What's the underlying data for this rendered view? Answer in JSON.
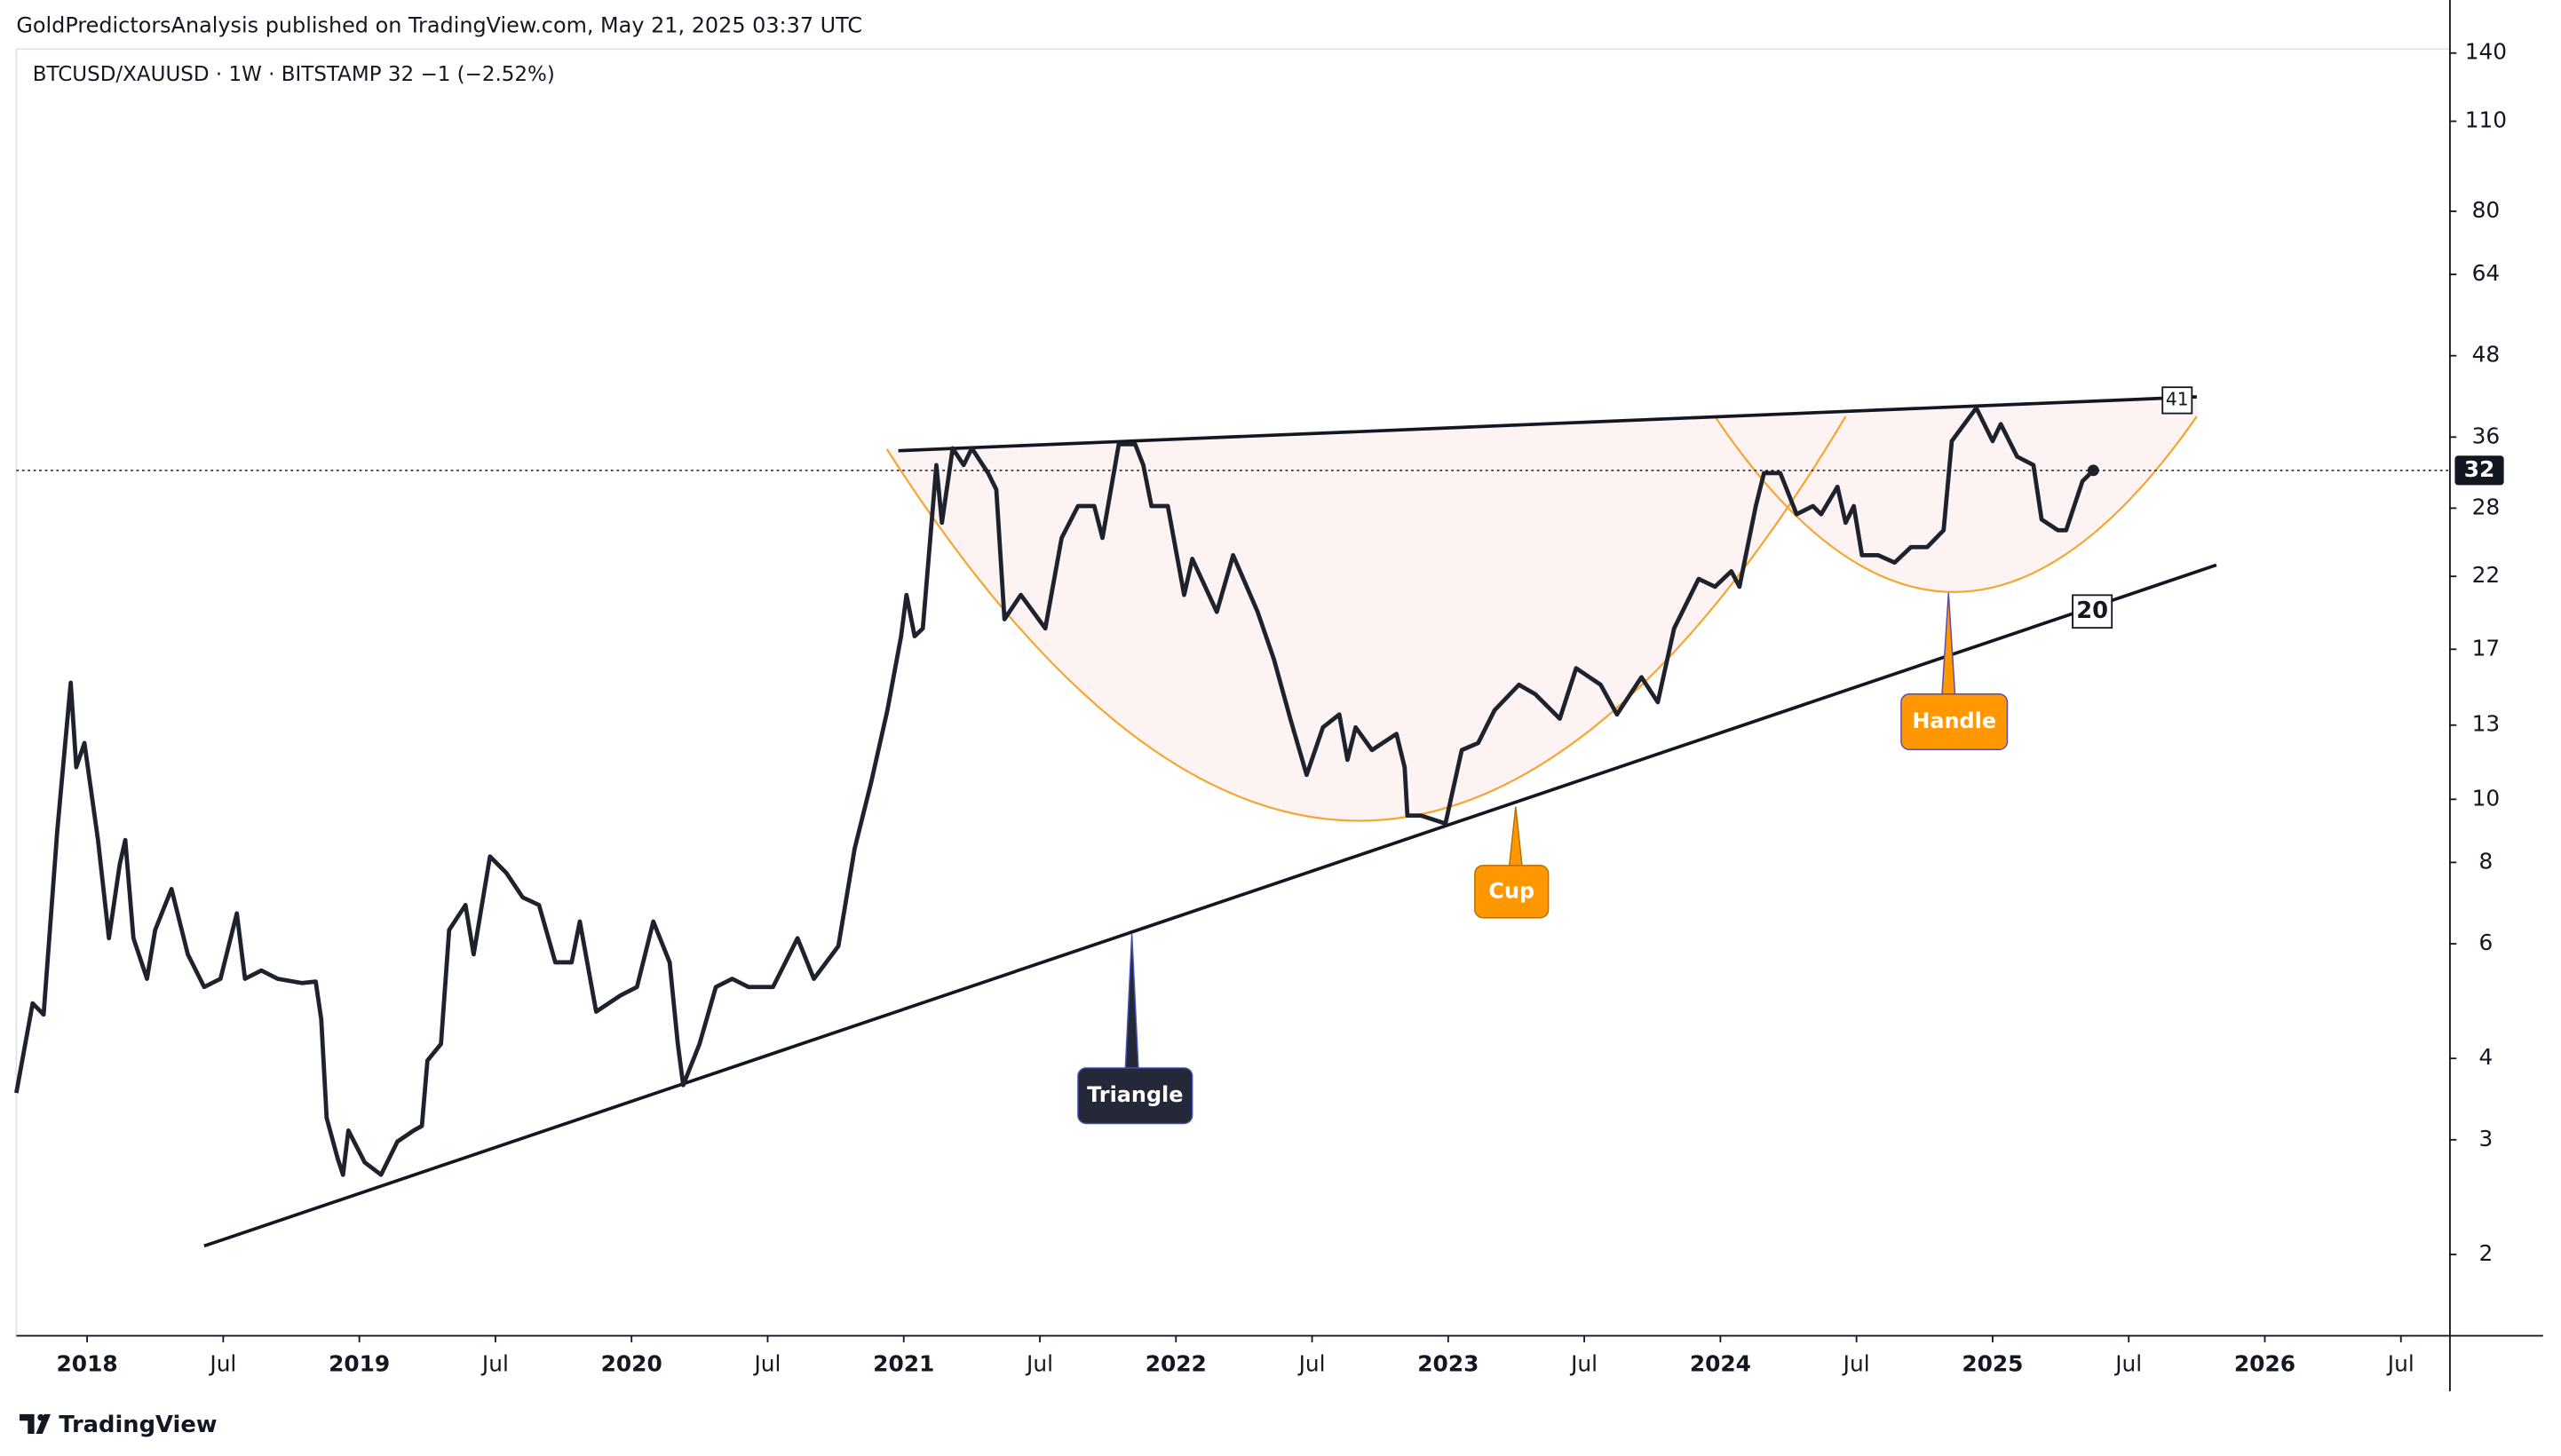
{
  "header": "GoldPredictorsAnalysis published on TradingView.com, May 21, 2025 03:37 UTC",
  "symbol_info": "BTCUSD/XAUUSD · 1W · BITSTAMP  32  −1 (−2.52%)",
  "brand": "TradingView",
  "chart_data": {
    "type": "line",
    "log_scale": true,
    "color": "#1e222d",
    "x": [
      2017.74,
      2017.8,
      2017.84,
      2017.89,
      2017.94,
      2017.96,
      2017.99,
      2018.04,
      2018.08,
      2018.12,
      2018.14,
      2018.17,
      2018.22,
      2018.25,
      2018.31,
      2018.37,
      2018.43,
      2018.49,
      2018.55,
      2018.58,
      2018.64,
      2018.7,
      2018.79,
      2018.84,
      2018.86,
      2018.88,
      2018.92,
      2018.94,
      2018.96,
      2019.02,
      2019.08,
      2019.14,
      2019.2,
      2019.23,
      2019.25,
      2019.3,
      2019.33,
      2019.39,
      2019.42,
      2019.48,
      2019.54,
      2019.6,
      2019.66,
      2019.72,
      2019.78,
      2019.81,
      2019.87,
      2019.96,
      2020.02,
      2020.08,
      2020.14,
      2020.17,
      2020.19,
      2020.25,
      2020.31,
      2020.37,
      2020.43,
      2020.52,
      2020.61,
      2020.67,
      2020.76,
      2020.82,
      2020.88,
      2020.94,
      2020.99,
      2021.01,
      2021.04,
      2021.07,
      2021.12,
      2021.14,
      2021.18,
      2021.22,
      2021.25,
      2021.31,
      2021.34,
      2021.37,
      2021.43,
      2021.52,
      2021.58,
      2021.64,
      2021.7,
      2021.73,
      2021.79,
      2021.85,
      2021.88,
      2021.91,
      2021.97,
      2022.03,
      2022.06,
      2022.15,
      2022.21,
      2022.3,
      2022.36,
      2022.42,
      2022.48,
      2022.54,
      2022.6,
      2022.63,
      2022.66,
      2022.72,
      2022.81,
      2022.84,
      2022.85,
      2022.9,
      2022.99,
      2023.05,
      2023.11,
      2023.17,
      2023.26,
      2023.32,
      2023.41,
      2023.47,
      2023.56,
      2023.62,
      2023.71,
      2023.77,
      2023.83,
      2023.92,
      2023.98,
      2024.04,
      2024.07,
      2024.13,
      2024.16,
      2024.22,
      2024.28,
      2024.34,
      2024.37,
      2024.43,
      2024.46,
      2024.49,
      2024.52,
      2024.58,
      2024.64,
      2024.7,
      2024.76,
      2024.82,
      2024.85,
      2024.94,
      2025.0,
      2025.03,
      2025.09,
      2025.15,
      2025.18,
      2025.24,
      2025.27,
      2025.33,
      2025.37
    ],
    "values": [
      3.54,
      4.86,
      4.67,
      8.91,
      15.1,
      11.2,
      12.2,
      8.66,
      6.12,
      7.94,
      8.66,
      6.12,
      5.3,
      6.3,
      7.28,
      5.78,
      5.15,
      5.3,
      6.68,
      5.3,
      5.46,
      5.3,
      5.22,
      5.25,
      4.59,
      3.24,
      2.81,
      2.65,
      3.1,
      2.77,
      2.65,
      2.98,
      3.1,
      3.15,
      3.97,
      4.21,
      6.3,
      6.88,
      5.78,
      8.17,
      7.71,
      7.07,
      6.88,
      5.62,
      5.62,
      6.49,
      4.72,
      5.0,
      5.15,
      6.49,
      5.62,
      4.21,
      3.64,
      4.21,
      5.15,
      5.3,
      5.15,
      5.15,
      6.12,
      5.3,
      5.95,
      8.41,
      10.6,
      13.7,
      17.8,
      20.6,
      17.8,
      18.3,
      32.6,
      26.6,
      34.6,
      32.6,
      34.6,
      31.7,
      29.9,
      18.9,
      20.6,
      18.3,
      25.2,
      28.2,
      28.2,
      25.2,
      35.1,
      35.1,
      32.6,
      28.2,
      28.2,
      20.6,
      23.4,
      19.4,
      23.7,
      19.4,
      16.4,
      13.3,
      10.9,
      12.9,
      13.5,
      11.5,
      12.9,
      11.9,
      12.6,
      11.2,
      9.44,
      9.44,
      9.18,
      11.9,
      12.2,
      13.7,
      15.0,
      14.5,
      13.3,
      15.9,
      15.0,
      13.5,
      15.4,
      14.1,
      18.3,
      21.8,
      21.2,
      22.4,
      21.2,
      28.2,
      31.7,
      31.7,
      27.4,
      28.2,
      27.4,
      30.2,
      26.6,
      28.2,
      23.7,
      23.7,
      23.1,
      24.4,
      24.4,
      25.9,
      35.5,
      39.9,
      35.5,
      37.7,
      33.6,
      32.6,
      26.9,
      25.9,
      25.9,
      30.8,
      32
    ],
    "xlim": [
      2017.74,
      2026.68
    ],
    "ylim": [
      1.5,
      142
    ],
    "xticks": [
      2018,
      {
        "value": 2018.5,
        "label": "Jul"
      },
      2019,
      {
        "value": 2019.5,
        "label": "Jul"
      },
      2020,
      {
        "value": 2020.5,
        "label": "Jul"
      },
      2021,
      {
        "value": 2021.5,
        "label": "Jul"
      },
      2022,
      {
        "value": 2022.5,
        "label": "Jul"
      },
      2023,
      {
        "value": 2023.5,
        "label": "Jul"
      },
      2024,
      {
        "value": 2024.5,
        "label": "Jul"
      },
      2025,
      {
        "value": 2025.5,
        "label": "Jul"
      },
      2026,
      {
        "value": 2026.5,
        "label": "Jul"
      }
    ],
    "yticks": [
      140,
      110,
      80,
      64,
      48,
      36,
      28,
      22,
      17,
      13,
      10,
      8,
      6,
      4,
      3,
      2
    ],
    "last_price": 32,
    "price_labels": [
      41,
      20
    ],
    "annotations": [
      "Triangle",
      "Cup",
      "Handle"
    ]
  }
}
